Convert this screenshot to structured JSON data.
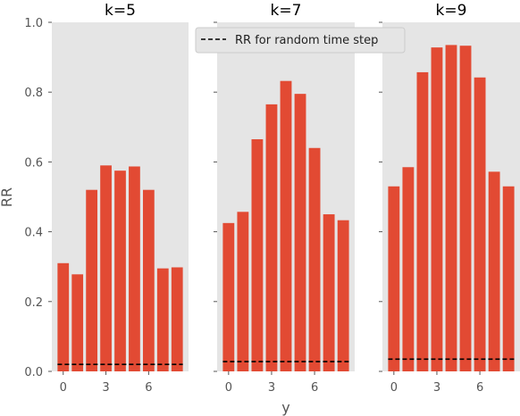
{
  "chart_data": {
    "type": "bar",
    "ylabel": "RR",
    "xlabel": "y",
    "ylim": [
      0,
      1.0
    ],
    "yticks": [
      "0.0",
      "0.2",
      "0.4",
      "0.6",
      "0.8",
      "1.0"
    ],
    "xticks": [
      "0",
      "3",
      "6"
    ],
    "x": [
      0,
      1,
      2,
      3,
      4,
      5,
      6,
      7,
      8
    ],
    "legend": {
      "label": "RR for random time step",
      "placement": "top-center"
    },
    "colors": {
      "bar": "#E24A33",
      "panel_bg": "#E5E5E5",
      "baseline": "#000000"
    },
    "grid": false,
    "panels": [
      {
        "title": "k=5",
        "values": [
          0.31,
          0.278,
          0.52,
          0.59,
          0.575,
          0.587,
          0.52,
          0.295,
          0.298
        ],
        "baseline": 0.02
      },
      {
        "title": "k=7",
        "values": [
          0.425,
          0.457,
          0.665,
          0.765,
          0.832,
          0.795,
          0.64,
          0.45,
          0.433
        ],
        "baseline": 0.028
      },
      {
        "title": "k=9",
        "values": [
          0.53,
          0.585,
          0.857,
          0.928,
          0.935,
          0.933,
          0.842,
          0.572,
          0.53
        ],
        "baseline": 0.035
      }
    ]
  }
}
